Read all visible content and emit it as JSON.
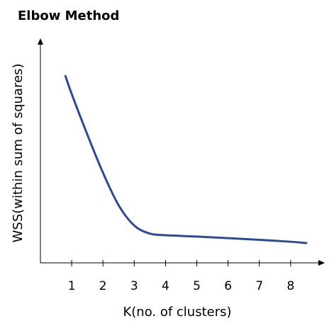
{
  "chart_data": {
    "type": "line",
    "title": "Elbow Method",
    "xlabel": "K(no. of clusters)",
    "ylabel": "WSS(within sum of squares)",
    "x_ticks": [
      "1",
      "2",
      "3",
      "4",
      "5",
      "6",
      "7",
      "8"
    ],
    "grid": false,
    "legend": "none",
    "y_ticks": "none",
    "series": [
      {
        "x": [
          0.8,
          1,
          1.5,
          2,
          2.5,
          3,
          3.5,
          4,
          5,
          6,
          7,
          8,
          8.5
        ],
        "y": [
          100,
          89,
          64,
          40.5,
          20.5,
          8,
          3,
          2,
          1.2,
          0.2,
          -0.8,
          -2,
          -2.8
        ],
        "color": "#2f4b8c"
      }
    ],
    "xlim": [
      0,
      9
    ],
    "ylim": [
      -15,
      125
    ]
  }
}
